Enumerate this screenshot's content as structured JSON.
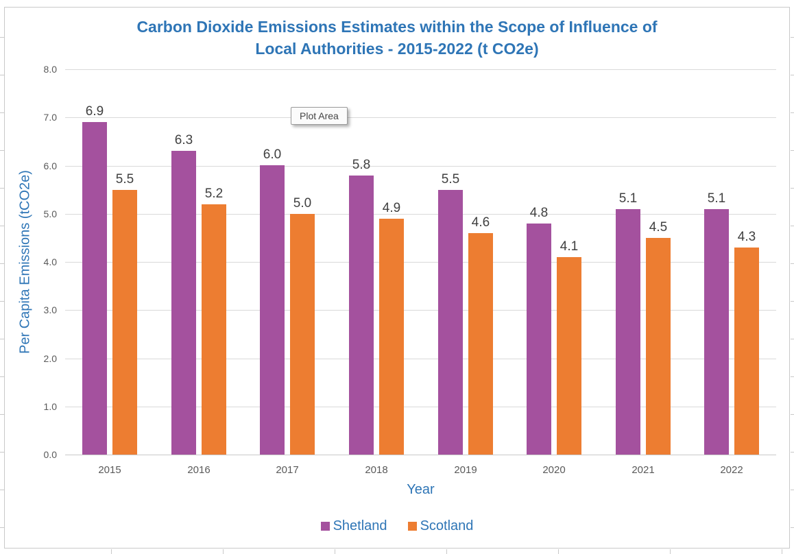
{
  "tooltip": {
    "text": "Plot Area"
  },
  "title_lines": {
    "line1": "Carbon Dioxide Emissions Estimates within the Scope of Influence of",
    "line2": "Local Authorities - 2015-2022 (t CO2e)"
  },
  "chart_data": {
    "type": "bar",
    "title": "Carbon Dioxide Emissions Estimates within the Scope of Influence of Local Authorities - 2015-2022 (t CO2e)",
    "categories": [
      "2015",
      "2016",
      "2017",
      "2018",
      "2019",
      "2020",
      "2021",
      "2022"
    ],
    "series": [
      {
        "name": "Shetland",
        "color": "#A4519E",
        "values": [
          6.9,
          6.3,
          6.0,
          5.8,
          5.5,
          4.8,
          5.1,
          5.1
        ]
      },
      {
        "name": "Scotland",
        "color": "#ED7D31",
        "values": [
          5.5,
          5.2,
          5.0,
          4.9,
          4.6,
          4.1,
          4.5,
          4.3
        ]
      }
    ],
    "xlabel": "Year",
    "ylabel": "Per Capita Emissions (tCO2e)",
    "ylim": [
      0,
      8
    ],
    "yticks": [
      "0.0",
      "1.0",
      "2.0",
      "3.0",
      "4.0",
      "5.0",
      "6.0",
      "7.0",
      "8.0"
    ],
    "grid": true,
    "legend_position": "bottom",
    "value_labels": true,
    "value_label_decimals": 1
  },
  "palette": {
    "title_blue": "#2E75B6",
    "tick_gray": "#595959",
    "value_label_gray": "#404040",
    "gridline": "#D9D9D9",
    "chart_border": "#C9C9C9"
  }
}
